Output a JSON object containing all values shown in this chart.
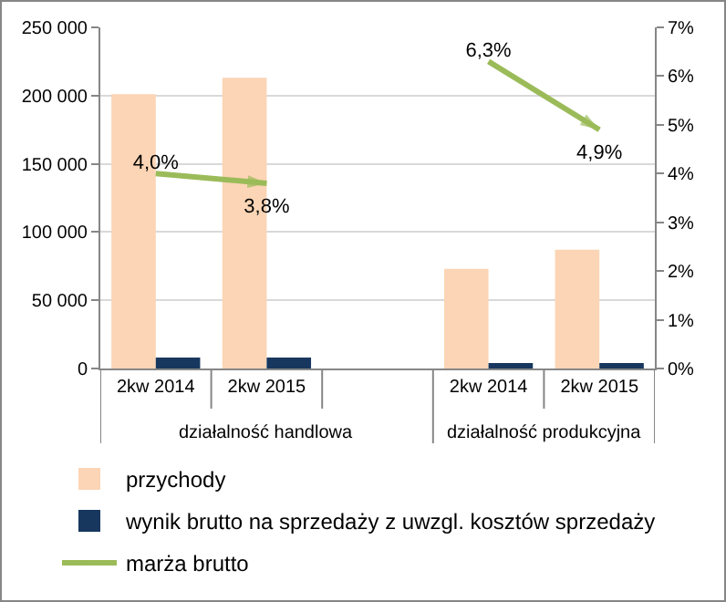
{
  "chart_data": {
    "type": "bar",
    "categories": [
      "2kw 2014",
      "2kw 2015",
      null,
      "2kw 2014",
      "2kw 2015"
    ],
    "series": [
      {
        "name": "przychody",
        "color": "#fbd5b5",
        "values": [
          201000,
          213000,
          null,
          73000,
          87000
        ]
      },
      {
        "name": "wynik brutto na sprzedaży z uwzgl. kosztów sprzedaży",
        "color": "#17375e",
        "values": [
          8000,
          8000,
          null,
          4000,
          4000
        ]
      },
      {
        "name": "marża brutto",
        "type": "line",
        "axis": "y2",
        "color": "#9bbb59",
        "values": [
          4.0,
          3.8,
          null,
          6.3,
          4.9
        ],
        "value_labels": [
          "4,0%",
          "3,8%",
          null,
          "6,3%",
          "4,9%"
        ]
      }
    ],
    "ylim": [
      0,
      250000
    ],
    "yticks": [
      {
        "value": 0,
        "label": "0"
      },
      {
        "value": 50000,
        "label": "50 000"
      },
      {
        "value": 100000,
        "label": "100 000"
      },
      {
        "value": 150000,
        "label": "150 000"
      },
      {
        "value": 200000,
        "label": "200 000"
      },
      {
        "value": 250000,
        "label": "250 000"
      }
    ],
    "y2lim": [
      0,
      7
    ],
    "y2ticks": [
      {
        "value": 0,
        "label": "0%"
      },
      {
        "value": 1,
        "label": "1%"
      },
      {
        "value": 2,
        "label": "2%"
      },
      {
        "value": 3,
        "label": "3%"
      },
      {
        "value": 4,
        "label": "4%"
      },
      {
        "value": 5,
        "label": "5%"
      },
      {
        "value": 6,
        "label": "6%"
      },
      {
        "value": 7,
        "label": "7%"
      }
    ],
    "grid": "y",
    "legend": "bottom",
    "annotations": [
      "działalność handlowa",
      "działalność produkcyjna"
    ]
  }
}
